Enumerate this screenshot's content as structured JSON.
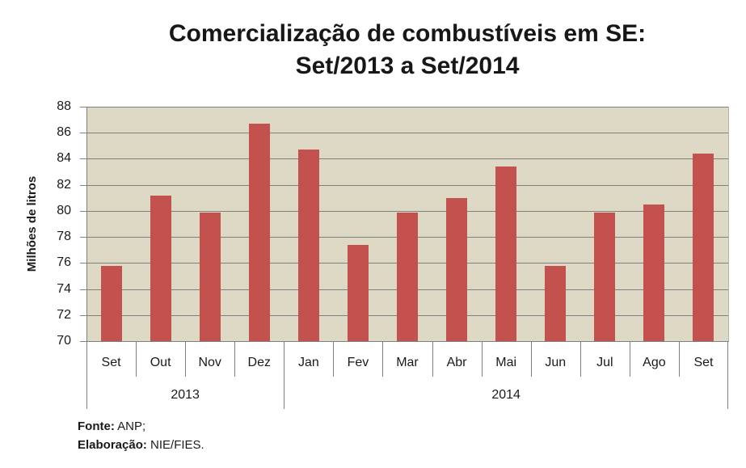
{
  "chart_data": {
    "type": "bar",
    "title_line1": "Comercialização de combustíveis em SE:",
    "title_line2": "Set/2013 a Set/2014",
    "ylabel": "Milhões de litros",
    "ylim": [
      70,
      88
    ],
    "yticks": [
      88,
      86,
      84,
      82,
      80,
      78,
      76,
      74,
      72,
      70
    ],
    "categories": [
      "Set",
      "Out",
      "Nov",
      "Dez",
      "Jan",
      "Fev",
      "Mar",
      "Abr",
      "Mai",
      "Jun",
      "Jul",
      "Ago",
      "Set"
    ],
    "values": [
      75.8,
      81.2,
      79.9,
      86.7,
      84.7,
      77.4,
      79.9,
      81.0,
      83.4,
      75.8,
      79.9,
      80.5,
      84.4
    ],
    "year_groups": [
      {
        "label": "2013",
        "span": 4
      },
      {
        "label": "2014",
        "span": 9
      }
    ],
    "grid": true,
    "legend": false,
    "colors": {
      "bar": "#c3514d",
      "plot_bg": "#ddd9c4",
      "gridline": "#808080",
      "axis": "#808080",
      "plot_right_border": "#b7b49f",
      "text": "#1a1a1a"
    }
  },
  "footer": {
    "fonte_label": "Fonte:",
    "fonte_value": "ANP;",
    "elaboracao_label": "Elaboração:",
    "elaboracao_value": "NIE/FIES."
  }
}
